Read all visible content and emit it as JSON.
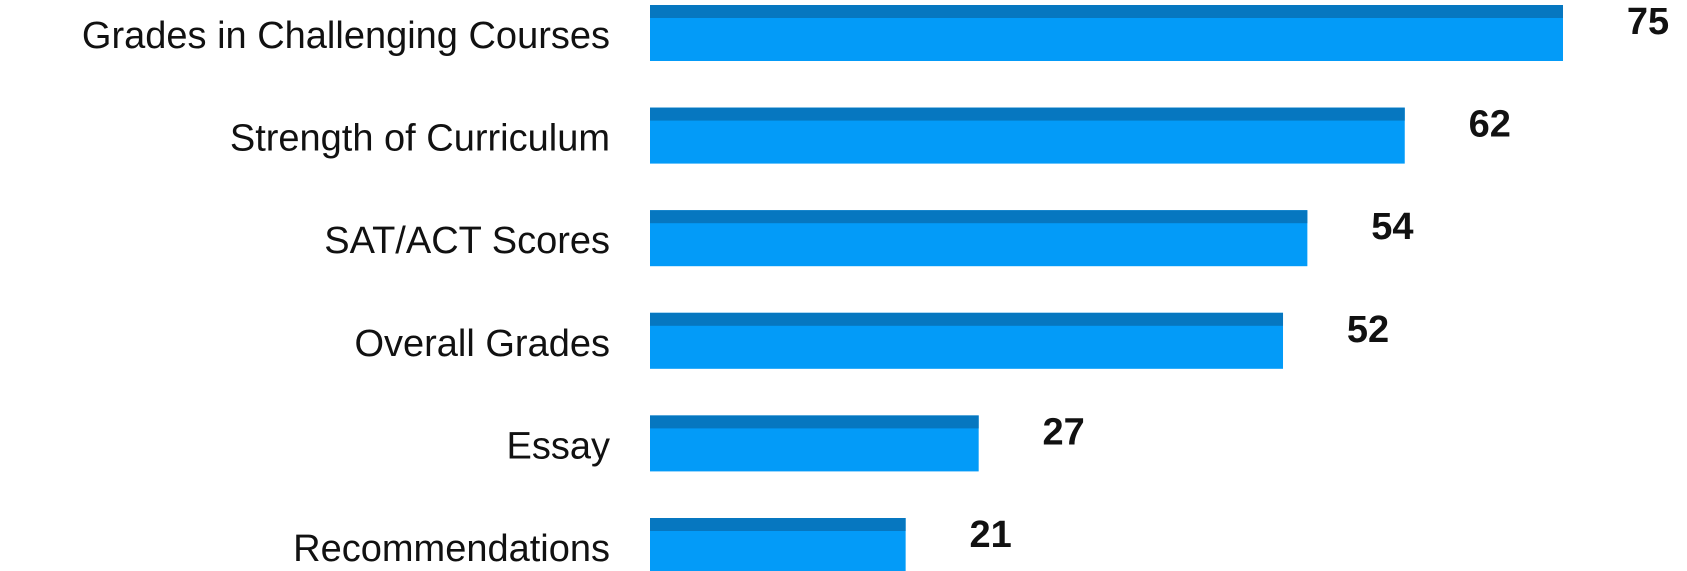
{
  "chart_data": {
    "type": "bar",
    "orientation": "horizontal",
    "categories": [
      "Grades in Challenging Courses",
      "Strength of Curriculum",
      "SAT/ACT Scores",
      "Overall Grades",
      "Essay",
      "Recommendations"
    ],
    "values": [
      75,
      62,
      54,
      52,
      27,
      21
    ],
    "title": "",
    "xlabel": "",
    "ylabel": "",
    "xlim": [
      0,
      75
    ],
    "grid": false,
    "legend": "none",
    "colors": {
      "bar": "#039bf8",
      "bar_top": "#0677c0",
      "text": "#111111"
    }
  }
}
